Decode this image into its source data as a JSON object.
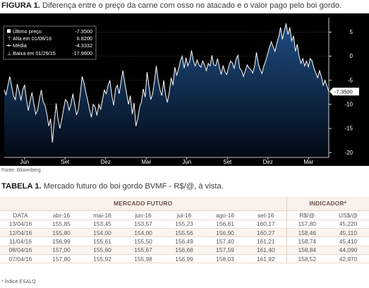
{
  "figure": {
    "label": "FIGURA 1.",
    "title": "Diferença entre o preço da carne com osso no atacado e o valor pago pelo boi gordo.",
    "source": "Fonte: Bloomberg"
  },
  "chart_data": {
    "type": "area",
    "ylim": [
      -21,
      8
    ],
    "y_ticks": [
      "5",
      "0",
      "-5",
      "-10",
      "-15",
      "-20"
    ],
    "x_ticks": [
      "Jun",
      "Set",
      "Dez",
      "Mar",
      "Jun",
      "Set",
      "Dez",
      "Mar"
    ],
    "last_value_label": "-7.3500",
    "legend": [
      {
        "label": "Último preço",
        "value": "-7.3500"
      },
      {
        "label": "Alta em 01/08/16",
        "value": "6.8200"
      },
      {
        "label": "Média",
        "value": "-4.3332"
      },
      {
        "label": "Baixa em 01/29/15",
        "value": "-17.9600"
      }
    ],
    "series": [
      {
        "values": [
          [
            0,
            -7.0
          ],
          [
            1,
            -8.0
          ],
          [
            2,
            -6.0
          ],
          [
            3,
            -4.2
          ],
          [
            4,
            -6.2
          ],
          [
            5,
            -8.2
          ],
          [
            6,
            -9.0
          ],
          [
            7,
            -5.8
          ],
          [
            8,
            -7.2
          ],
          [
            9,
            -9.2
          ],
          [
            10,
            -6.9
          ],
          [
            11,
            -6.0
          ],
          [
            12,
            -9.0
          ],
          [
            13,
            -11.3
          ],
          [
            14,
            -9.2
          ],
          [
            15,
            -7.5
          ],
          [
            16,
            -10.0
          ],
          [
            17,
            -12.0
          ],
          [
            18,
            -11.2
          ],
          [
            19,
            -8.8
          ],
          [
            20,
            -7.0
          ],
          [
            21,
            -9.5
          ],
          [
            22,
            -10.2
          ],
          [
            23,
            -12.0
          ],
          [
            24,
            -14.5
          ],
          [
            25,
            -13.0
          ],
          [
            26,
            -17.9
          ],
          [
            27,
            -13.5
          ],
          [
            28,
            -9.8
          ],
          [
            29,
            -13.0
          ],
          [
            30,
            -15.0
          ],
          [
            31,
            -13.2
          ],
          [
            32,
            -11.0
          ],
          [
            33,
            -9.0
          ],
          [
            34,
            -9.5
          ],
          [
            35,
            -11.2
          ],
          [
            36,
            -10.0
          ],
          [
            37,
            -7.8
          ],
          [
            38,
            -10.0
          ],
          [
            39,
            -12.2
          ],
          [
            40,
            -11.0
          ],
          [
            41,
            -7.8
          ],
          [
            42,
            -4.2
          ],
          [
            43,
            -5.5
          ],
          [
            44,
            -7.5
          ],
          [
            45,
            -9.2
          ],
          [
            46,
            -11.0
          ],
          [
            47,
            -12.7
          ],
          [
            48,
            -10.0
          ],
          [
            49,
            -10.5
          ],
          [
            50,
            -12.3
          ],
          [
            51,
            -10.0
          ],
          [
            52,
            -11.0
          ],
          [
            53,
            -9.0
          ],
          [
            54,
            -7.0
          ],
          [
            55,
            -7.8
          ],
          [
            56,
            -6.0
          ],
          [
            57,
            -5.0
          ],
          [
            58,
            -8.2
          ],
          [
            59,
            -10.2
          ],
          [
            60,
            -6.8
          ],
          [
            61,
            -6.0
          ],
          [
            62,
            -7.8
          ],
          [
            63,
            -5.2
          ],
          [
            64,
            -3.0
          ],
          [
            65,
            -5.6
          ],
          [
            66,
            -7.8
          ],
          [
            67,
            -10.0
          ],
          [
            68,
            -8.2
          ],
          [
            69,
            -12.0
          ],
          [
            70,
            -9.7
          ],
          [
            71,
            -14.5
          ],
          [
            72,
            -13.0
          ],
          [
            73,
            -10.5
          ],
          [
            74,
            -9.5
          ],
          [
            75,
            -6.8
          ],
          [
            76,
            -8.5
          ],
          [
            77,
            -3.3
          ],
          [
            78,
            -6.0
          ],
          [
            79,
            -9.0
          ],
          [
            80,
            -7.8
          ],
          [
            81,
            -5.2
          ],
          [
            82,
            -2.0
          ],
          [
            83,
            -5.0
          ],
          [
            84,
            -7.0
          ],
          [
            85,
            -8.2
          ],
          [
            86,
            -5.0
          ],
          [
            87,
            -8.0
          ],
          [
            88,
            -9.6
          ],
          [
            89,
            -7.5
          ],
          [
            90,
            -4.5
          ],
          [
            91,
            -6.0
          ],
          [
            92,
            -2.3
          ],
          [
            93,
            -4.0
          ],
          [
            94,
            -2.6
          ],
          [
            95,
            -1.0
          ],
          [
            96,
            0.0
          ],
          [
            97,
            -2.5
          ],
          [
            98,
            -0.3
          ],
          [
            99,
            -2.0
          ],
          [
            100,
            -1.0
          ],
          [
            101,
            1.2
          ],
          [
            102,
            -1.0
          ],
          [
            103,
            -2.0
          ],
          [
            104,
            -0.8
          ],
          [
            105,
            -1.8
          ],
          [
            106,
            -2.3
          ],
          [
            107,
            -1.0
          ],
          [
            108,
            -1.8
          ],
          [
            109,
            -3.0
          ],
          [
            110,
            -1.5
          ],
          [
            111,
            -2.0
          ],
          [
            112,
            0.2
          ],
          [
            113,
            -1.8
          ],
          [
            114,
            -2.0
          ],
          [
            115,
            -0.5
          ],
          [
            116,
            -2.2
          ],
          [
            117,
            -3.8
          ],
          [
            118,
            -2.0
          ],
          [
            119,
            -3.2
          ],
          [
            120,
            -3.8
          ],
          [
            121,
            -2.2
          ],
          [
            122,
            -1.0
          ],
          [
            123,
            -1.4
          ],
          [
            124,
            -2.5
          ],
          [
            125,
            -0.6
          ],
          [
            126,
            0.2
          ],
          [
            127,
            -2.5
          ],
          [
            128,
            -3.0
          ],
          [
            129,
            -4.2
          ],
          [
            130,
            -3.0
          ],
          [
            131,
            -1.8
          ],
          [
            132,
            -2.5
          ],
          [
            133,
            -2.8
          ],
          [
            134,
            -3.5
          ],
          [
            135,
            -2.0
          ],
          [
            136,
            0.8
          ],
          [
            137,
            -1.5
          ],
          [
            138,
            -2.8
          ],
          [
            139,
            -3.6
          ],
          [
            140,
            -2.0
          ],
          [
            141,
            -1.0
          ],
          [
            142,
            0.5
          ],
          [
            143,
            1.8
          ],
          [
            144,
            3.0
          ],
          [
            145,
            2.0
          ],
          [
            146,
            1.0
          ],
          [
            147,
            2.8
          ],
          [
            148,
            4.0
          ],
          [
            149,
            6.0
          ],
          [
            150,
            3.5
          ],
          [
            151,
            5.2
          ],
          [
            152,
            6.8
          ],
          [
            153,
            4.5
          ],
          [
            154,
            6.0
          ],
          [
            155,
            3.2
          ],
          [
            156,
            4.2
          ],
          [
            157,
            1.0
          ],
          [
            158,
            2.5
          ],
          [
            159,
            0.0
          ],
          [
            160,
            -1.5
          ],
          [
            161,
            -0.5
          ],
          [
            162,
            -2.0
          ],
          [
            163,
            -1.0
          ],
          [
            164,
            -2.2
          ],
          [
            165,
            -0.5
          ],
          [
            166,
            -1.0
          ],
          [
            167,
            -2.5
          ],
          [
            168,
            -3.5
          ],
          [
            169,
            -4.5
          ],
          [
            170,
            -3.0
          ],
          [
            171,
            -4.2
          ],
          [
            172,
            -6.0
          ],
          [
            173,
            -5.0
          ],
          [
            174,
            -6.2
          ],
          [
            175,
            -7.35
          ]
        ]
      }
    ]
  },
  "table": {
    "label": "TABELA 1.",
    "title": "Mercado futuro do boi gordo BVMF - R$/@, à vista.",
    "group_market": "MERCADO FUTURO",
    "group_indicator": "INDICADOR*",
    "columns": [
      "DATA",
      "abr-16",
      "mai-16",
      "jun-16",
      "jul-16",
      "ago-16",
      "set-16",
      "R$/@",
      "US$/@"
    ],
    "rows": [
      [
        "13/04/16",
        "155,85",
        "153,45",
        "153,57",
        "155,23",
        "156,81",
        "160,17",
        "157,80",
        "45,220"
      ],
      [
        "12/04/16",
        "155,80",
        "154,00",
        "154,00",
        "155,56",
        "156,90",
        "160,27",
        "158,46",
        "45,110"
      ],
      [
        "11/04/16",
        "156,99",
        "155,61",
        "155,50",
        "156,49",
        "157,40",
        "161,21",
        "158,74",
        "45,410"
      ],
      [
        "08/04/16",
        "157,00",
        "155,60",
        "155,67",
        "156,68",
        "157,59",
        "161,40",
        "158,84",
        "44,090"
      ],
      [
        "07/04/16",
        "157,80",
        "155,92",
        "155,98",
        "156,99",
        "158,03",
        "161,92",
        "158,52",
        "42,970"
      ]
    ],
    "footnote": "* Índice ESALQ"
  },
  "colors": {
    "chart_bg": "#000000",
    "area_top": "#1f4e83",
    "area_bottom": "#020914",
    "line": "#ffffff",
    "axis_text": "#ffffff",
    "table_header_bg": "#f8f1ec",
    "table_header_text": "#6a5346"
  }
}
